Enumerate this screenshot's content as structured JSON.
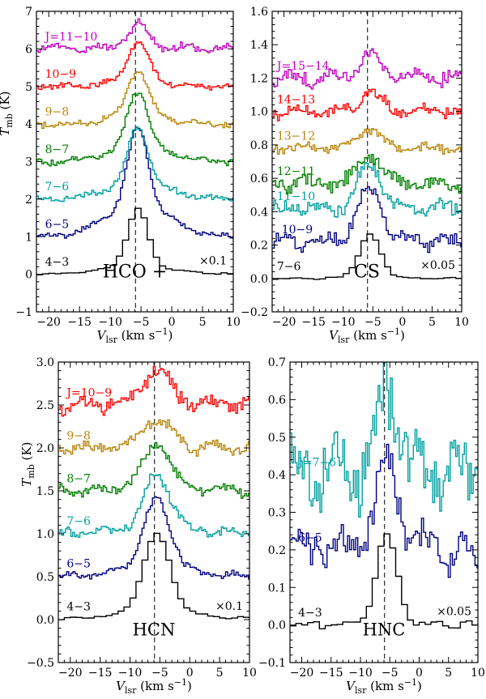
{
  "chart_data": [
    {
      "type": "line",
      "panel": "top-left",
      "title": "HCO +",
      "ylabel": "T_mb (K)",
      "ylabel_main": "T",
      "ylabel_sub": "mb",
      "ylabel_unit": " (K)",
      "xlabel_main": "V",
      "xlabel_sub": "lsr",
      "xlabel_unit": " (km s",
      "xlabel_sup": "−1",
      "xlabel_close": ")",
      "xlim": [
        -22,
        10
      ],
      "ylim": [
        -1,
        7
      ],
      "xticks": [
        -20,
        -15,
        -10,
        -5,
        0,
        5,
        10
      ],
      "xtick_labels": [
        "−20",
        "−15",
        "−10",
        "−5",
        "0",
        "5",
        "10"
      ],
      "yticks": [
        -1,
        0,
        1,
        2,
        3,
        4,
        5,
        6,
        7
      ],
      "ytick_labels": [
        "−1",
        "0",
        "1",
        "2",
        "3",
        "4",
        "5",
        "6",
        "7"
      ],
      "dashed_line_x": -5.9,
      "scale_note": "×0.1",
      "series": [
        {
          "name": "4−3",
          "offset": 0,
          "peak": 1.75,
          "width": 1.6,
          "wing": 0.15,
          "noise": 0.02,
          "step": 1.0,
          "color": "#000000",
          "label_x": -20.6
        },
        {
          "name": "6−5",
          "offset": 1.0,
          "peak": 2.9,
          "width": 1.6,
          "wing": 0.3,
          "noise": 0.05,
          "step": 0.35,
          "color": "#000080",
          "label_x": -20.6
        },
        {
          "name": "7−6",
          "offset": 2.0,
          "peak": 1.9,
          "width": 1.6,
          "wing": 0.22,
          "noise": 0.06,
          "step": 0.3,
          "color": "#00a0a0",
          "label_x": -20.6
        },
        {
          "name": "8−7",
          "offset": 3.0,
          "peak": 1.9,
          "width": 1.6,
          "wing": 0.2,
          "noise": 0.06,
          "step": 0.3,
          "color": "#008000",
          "label_x": -20.6
        },
        {
          "name": "9−8",
          "offset": 4.0,
          "peak": 1.45,
          "width": 1.6,
          "wing": 0.15,
          "noise": 0.06,
          "step": 0.3,
          "color": "#b8860b",
          "label_x": -20.6
        },
        {
          "name": "10−9",
          "offset": 5.0,
          "peak": 1.2,
          "width": 1.7,
          "wing": 0.1,
          "noise": 0.06,
          "step": 0.3,
          "color": "#ff0000",
          "label_x": -20.6
        },
        {
          "name": "J=11−10",
          "offset": 6.0,
          "peak": 0.65,
          "width": 1.6,
          "wing": 0.05,
          "noise": 0.08,
          "step": 0.3,
          "color": "#c000c0",
          "label_x": -20.6
        }
      ]
    },
    {
      "type": "line",
      "panel": "top-right",
      "title": "CS",
      "ylabel": "",
      "xlabel_main": "V",
      "xlabel_sub": "lsr",
      "xlabel_unit": " (km s",
      "xlabel_sup": "−1",
      "xlabel_close": ")",
      "xlim": [
        -22,
        10
      ],
      "ylim": [
        -0.2,
        1.6
      ],
      "xticks": [
        -20,
        -15,
        -10,
        -5,
        0,
        5,
        10
      ],
      "xtick_labels": [
        "−20",
        "−15",
        "−10",
        "−5",
        "0",
        "5",
        "10"
      ],
      "yticks": [
        -0.2,
        0.0,
        0.2,
        0.4,
        0.6,
        0.8,
        1.0,
        1.2,
        1.4,
        1.6
      ],
      "ytick_labels": [
        "−0.2",
        "0.0",
        "0.2",
        "0.4",
        "0.6",
        "0.8",
        "1.0",
        "1.2",
        "1.4",
        "1.6"
      ],
      "dashed_line_x": -5.9,
      "scale_note": "×0.05",
      "series": [
        {
          "name": "7−6",
          "offset": 0.0,
          "peak": 0.26,
          "width": 1.8,
          "wing": 0.02,
          "noise": 0.004,
          "step": 1.0,
          "color": "#000000",
          "label_x": -21.2
        },
        {
          "name": "10−9",
          "offset": 0.22,
          "peak": 0.32,
          "width": 2.0,
          "wing": 0.05,
          "noise": 0.03,
          "step": 0.35,
          "color": "#000080",
          "label_x": -20.4
        },
        {
          "name": "11−10",
          "offset": 0.42,
          "peak": 0.28,
          "width": 1.8,
          "wing": 0.03,
          "noise": 0.03,
          "step": 0.3,
          "color": "#00a0a0",
          "label_x": -21.2
        },
        {
          "name": "12−11",
          "offset": 0.57,
          "peak": 0.18,
          "width": 1.8,
          "wing": 0.02,
          "noise": 0.03,
          "step": 0.3,
          "color": "#008000",
          "label_x": -21.2
        },
        {
          "name": "13−12",
          "offset": 0.78,
          "peak": 0.12,
          "width": 1.8,
          "wing": 0.02,
          "noise": 0.02,
          "step": 0.3,
          "color": "#b8860b",
          "label_x": -21.2
        },
        {
          "name": "14−13",
          "offset": 1.0,
          "peak": 0.12,
          "width": 1.8,
          "wing": 0.02,
          "noise": 0.025,
          "step": 0.3,
          "color": "#ff0000",
          "label_x": -21.2
        },
        {
          "name": "J=15−14",
          "offset": 1.2,
          "peak": 0.15,
          "width": 1.6,
          "wing": 0.02,
          "noise": 0.03,
          "step": 0.3,
          "color": "#c000c0",
          "label_x": -21.2
        }
      ]
    },
    {
      "type": "line",
      "panel": "bottom-left",
      "title": "HCN",
      "ylabel": "T_mb (K)",
      "ylabel_main": "T",
      "ylabel_sub": "mb",
      "ylabel_unit": " (K)",
      "xlabel_main": "V",
      "xlabel_sub": "lsr",
      "xlabel_unit": " (km s",
      "xlabel_sup": "−1",
      "xlabel_close": ")",
      "xlim": [
        -22,
        10
      ],
      "ylim": [
        -0.5,
        3.0
      ],
      "xticks": [
        -20,
        -15,
        -10,
        -5,
        0,
        5,
        10
      ],
      "xtick_labels": [
        "−20",
        "−15",
        "−10",
        "−5",
        "0",
        "5",
        "10"
      ],
      "yticks": [
        -0.5,
        0.0,
        0.5,
        1.0,
        1.5,
        2.0,
        2.5,
        3.0
      ],
      "ytick_labels": [
        "−0.5",
        "0.0",
        "0.5",
        "1.0",
        "1.5",
        "2.0",
        "2.5",
        "3.0"
      ],
      "dashed_line_x": -5.9,
      "scale_note": "×0.1",
      "series": [
        {
          "name": "4−3",
          "offset": 0.0,
          "peak": 1.0,
          "width": 2.2,
          "wing": 0.1,
          "noise": 0.01,
          "step": 1.0,
          "color": "#000000",
          "label_x": -20.6
        },
        {
          "name": "6−5",
          "offset": 0.5,
          "peak": 0.9,
          "width": 2.2,
          "wing": 0.1,
          "noise": 0.03,
          "step": 0.35,
          "color": "#000080",
          "label_x": -20.6
        },
        {
          "name": "7−6",
          "offset": 1.0,
          "peak": 0.7,
          "width": 2.2,
          "wing": 0.08,
          "noise": 0.04,
          "step": 0.3,
          "color": "#00a0a0",
          "label_x": -20.6
        },
        {
          "name": "8−7",
          "offset": 1.5,
          "peak": 0.55,
          "width": 2.2,
          "wing": 0.06,
          "noise": 0.04,
          "step": 0.3,
          "color": "#008000",
          "label_x": -20.6
        },
        {
          "name": "9−8",
          "offset": 2.0,
          "peak": 0.35,
          "width": 2.3,
          "wing": 0.05,
          "noise": 0.05,
          "step": 0.3,
          "color": "#b8860b",
          "label_x": -20.6
        },
        {
          "name": "J=10−9",
          "offset": 2.5,
          "peak": 0.4,
          "width": 2.2,
          "wing": 0.05,
          "noise": 0.06,
          "step": 0.3,
          "color": "#ff0000",
          "label_x": -20.6
        }
      ]
    },
    {
      "type": "line",
      "panel": "bottom-right",
      "title": "HNC",
      "ylabel": "",
      "xlabel_main": "V",
      "xlabel_sub": "lsr",
      "xlabel_unit": " (km s",
      "xlabel_sup": "−1",
      "xlabel_close": ")",
      "xlim": [
        -22,
        10
      ],
      "ylim": [
        -0.1,
        0.7
      ],
      "xticks": [
        -20,
        -15,
        -10,
        -5,
        0,
        5,
        10
      ],
      "xtick_labels": [
        "−20",
        "−15",
        "−10",
        "−5",
        "0",
        "5",
        "10"
      ],
      "yticks": [
        -0.1,
        0.0,
        0.1,
        0.2,
        0.3,
        0.4,
        0.5,
        0.6,
        0.7
      ],
      "ytick_labels": [
        "−0.1",
        "0.0",
        "0.1",
        "0.2",
        "0.3",
        "0.4",
        "0.5",
        "0.6",
        "0.7"
      ],
      "dashed_line_x": -5.9,
      "scale_note": "×0.05",
      "series": [
        {
          "name": "4−3",
          "offset": 0.0,
          "peak": 0.24,
          "width": 1.7,
          "wing": 0.02,
          "noise": 0.006,
          "step": 1.0,
          "color": "#000000",
          "label_x": -20.6
        },
        {
          "name": "6−5",
          "offset": 0.2,
          "peak": 0.22,
          "width": 2.0,
          "wing": 0.03,
          "noise": 0.035,
          "step": 0.35,
          "color": "#000080",
          "label_x": -20.6
        },
        {
          "name": "J=7−6",
          "offset": 0.4,
          "peak": 0.22,
          "width": 1.8,
          "wing": 0.02,
          "noise": 0.06,
          "step": 0.3,
          "color": "#00a0a0",
          "label_x": -20.6
        }
      ]
    }
  ]
}
